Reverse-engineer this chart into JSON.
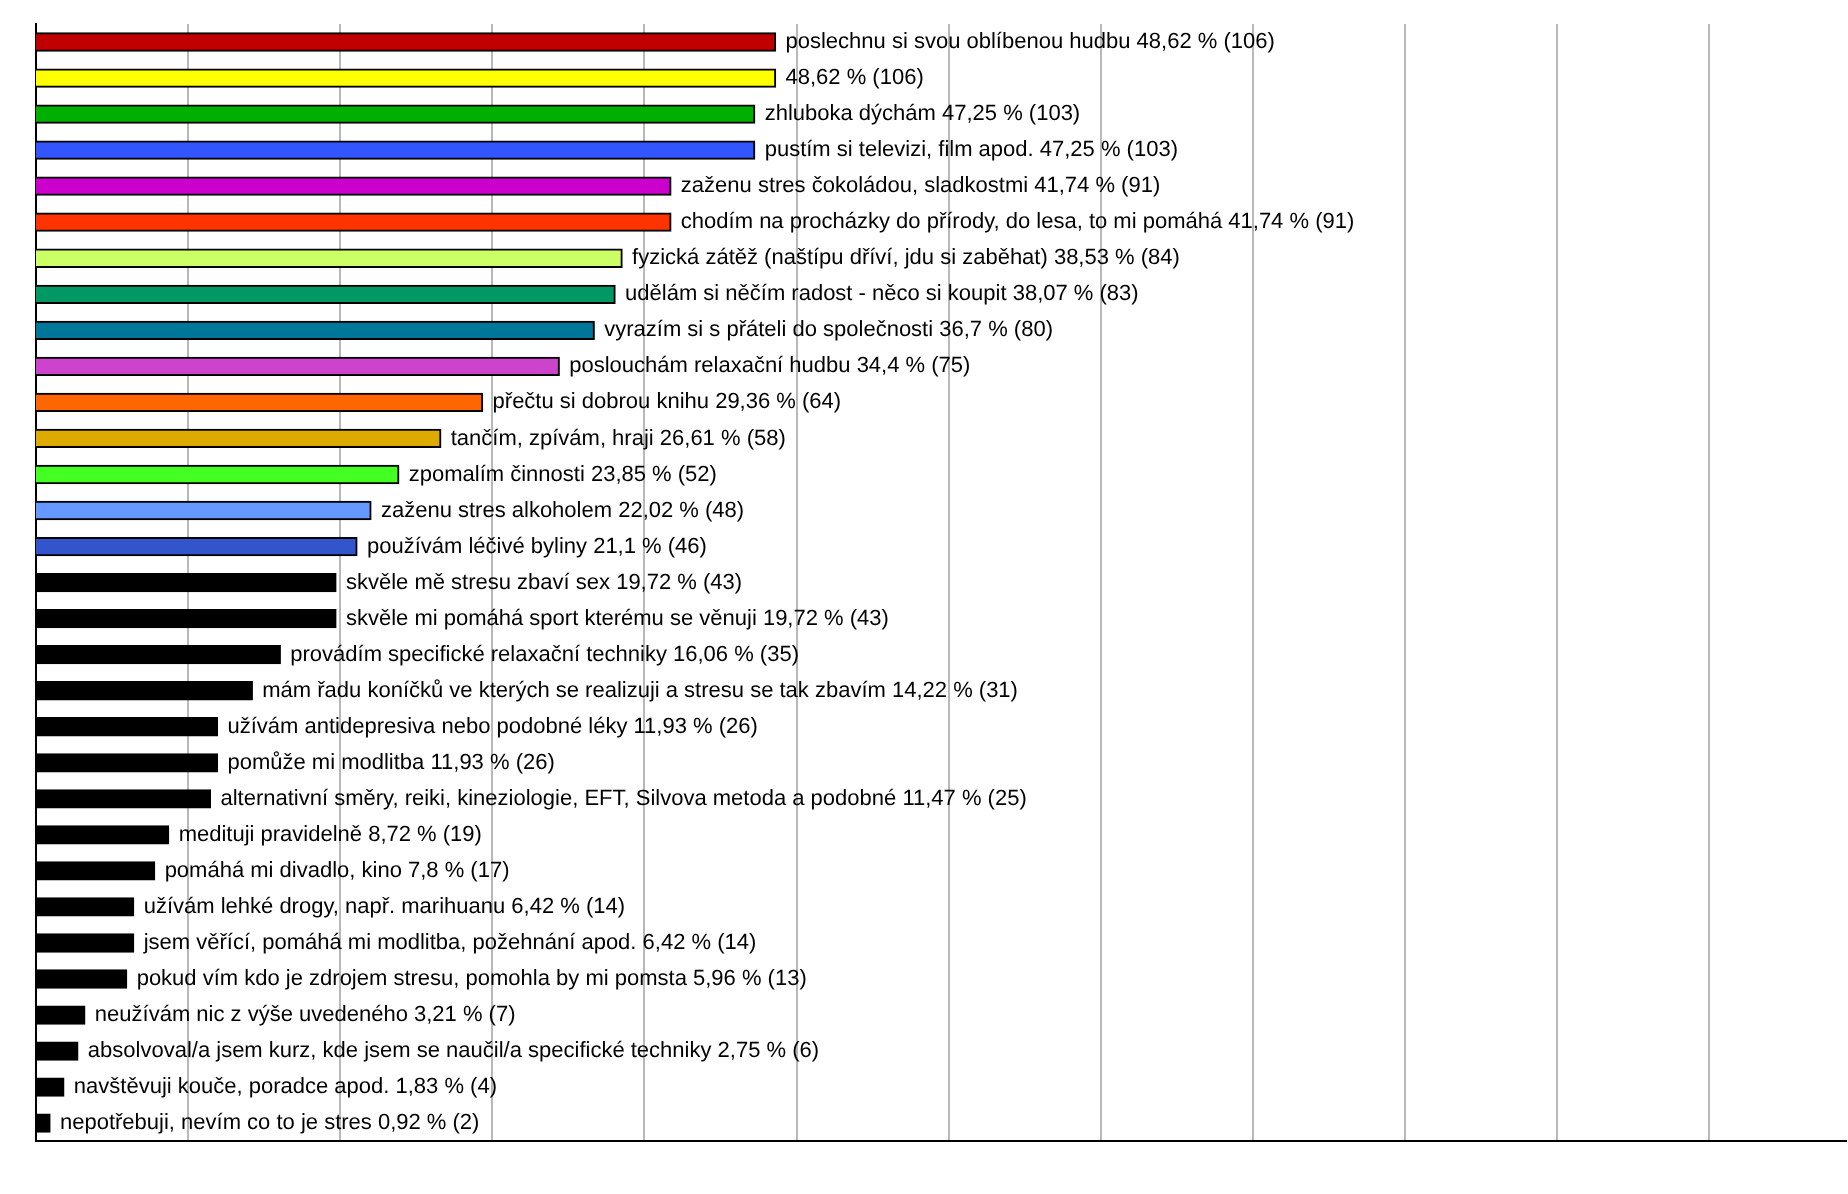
{
  "chart_data": {
    "type": "bar",
    "orientation": "horizontal",
    "categories": [
      null,
      null,
      null,
      null,
      null,
      null,
      null,
      null,
      null,
      null,
      null,
      null,
      null,
      null,
      null,
      null,
      null,
      null,
      null,
      null,
      null,
      null,
      null,
      null,
      null,
      null,
      null,
      null,
      null,
      null,
      null
    ],
    "values": [
      48.62,
      48.62,
      47.25,
      47.25,
      41.74,
      41.74,
      38.53,
      38.07,
      36.7,
      34.4,
      29.36,
      26.61,
      23.85,
      22.02,
      21.1,
      19.72,
      19.72,
      16.06,
      14.22,
      11.93,
      11.93,
      11.47,
      8.72,
      7.8,
      6.42,
      6.42,
      5.96,
      3.21,
      2.75,
      1.83,
      0.92
    ],
    "colors": [
      "#c00000",
      "#ffff00",
      "#00b000",
      "#3355ff",
      "#cc00cc",
      "#ff3300",
      "#ccff66",
      "#009966",
      "#007799",
      "#cc44cc",
      "#ff6600",
      "#ddaa00",
      "#44ff22",
      "#6699ff",
      "#3355cc",
      "#000000",
      "#000000",
      "#000000",
      "#000000",
      "#000000",
      "#000000",
      "#000000",
      "#000000",
      "#000000",
      "#000000",
      "#000000",
      "#000000",
      "#000000",
      "#000000",
      "#000000",
      "#000000"
    ],
    "value_labels": [
      "poslechnu si svou oblíbenou hudbu 48,62 % (106)",
      "48,62 % (106)",
      "zhluboka dýchám 47,25 % (103)",
      "pustím si televizi, film apod. 47,25 % (103)",
      "zaženu stres čokoládou, sladkostmi 41,74 % (91)",
      "chodím na procházky do přírody, do lesa, to mi pomáhá 41,74 % (91)",
      "fyzická zátěž (naštípu dříví, jdu si zaběhat) 38,53 % (84)",
      "udělám si něčím radost - něco si koupit 38,07 % (83)",
      "vyrazím si s přáteli do společnosti 36,7 % (80)",
      "poslouchám relaxační hudbu 34,4 % (75)",
      "přečtu si dobrou knihu 29,36 % (64)",
      "tančím, zpívám, hraji 26,61 % (58)",
      "zpomalím činnosti 23,85 % (52)",
      "zaženu stres alkoholem 22,02 % (48)",
      "používám léčivé byliny 21,1 % (46)",
      "skvěle mě stresu zbaví sex 19,72 % (43)",
      "skvěle mi pomáhá sport kterému se věnuji 19,72 % (43)",
      "provádím specifické relaxační techniky 16,06 % (35)",
      "mám řadu koníčků ve kterých se realizuji a stresu se tak zbavím 14,22 % (31)",
      "užívám antidepresiva nebo podobné léky 11,93 % (26)",
      "pomůže mi modlitba 11,93 % (26)",
      "alternativní směry, reiki, kineziologie, EFT, Silvova metoda a podobné 11,47 % (25)",
      "medituji pravidelně 8,72 % (19)",
      "pomáhá mi divadlo, kino 7,8 % (17)",
      "užívám lehké drogy, např. marihuanu 6,42 % (14)",
      "jsem věřící, pomáhá mi modlitba, požehnání apod. 6,42 % (14)",
      "pokud vím kdo je zdrojem stresu, pomohla by mi pomsta 5,96 % (13)",
      "neužívám nic z výše uvedeného 3,21 % (7)",
      "absolvoval/a jsem kurz, kde jsem se naučil/a specifické techniky 2,75 % (6)",
      "navštěvuji kouče, poradce apod. 1,83 % (4)",
      "nepotřebuji, nevím co to je stres 0,92 % (2)"
    ],
    "xlim": [
      0,
      119
    ],
    "xticks": [
      {
        "value": 10,
        "label": null
      },
      {
        "value": 20,
        "label": null
      },
      {
        "value": 30,
        "label": null
      },
      {
        "value": 40,
        "label": null
      },
      {
        "value": 50,
        "label": null
      },
      {
        "value": 60,
        "label": null
      },
      {
        "value": 70,
        "label": null
      },
      {
        "value": 80,
        "label": null
      },
      {
        "value": 90,
        "label": null
      },
      {
        "value": 100,
        "label": null
      },
      {
        "value": 110,
        "label": null
      }
    ],
    "grid": "x",
    "legend": false
  }
}
